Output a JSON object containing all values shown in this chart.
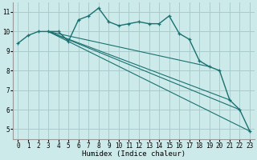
{
  "xlabel": "Humidex (Indice chaleur)",
  "bg_color": "#cceaea",
  "grid_color": "#aacccc",
  "line_color": "#1a7070",
  "xlim": [
    -0.5,
    23.5
  ],
  "ylim": [
    4.5,
    11.5
  ],
  "xticks": [
    0,
    1,
    2,
    3,
    4,
    5,
    6,
    7,
    8,
    9,
    10,
    11,
    12,
    13,
    14,
    15,
    16,
    17,
    18,
    19,
    20,
    21,
    22,
    23
  ],
  "yticks": [
    5,
    6,
    7,
    8,
    9,
    10,
    11
  ],
  "main_series": [
    9.4,
    9.8,
    10.0,
    10.0,
    10.0,
    9.5,
    10.6,
    10.8,
    11.2,
    10.5,
    10.3,
    10.4,
    10.5,
    10.4,
    10.4,
    10.8,
    9.9,
    9.6,
    8.5,
    8.2,
    8.0,
    6.5,
    6.0,
    4.9
  ],
  "straight_lines": [
    [
      [
        3,
        23
      ],
      [
        10.0,
        4.9
      ]
    ],
    [
      [
        3,
        22
      ],
      [
        10.0,
        6.0
      ]
    ],
    [
      [
        3,
        21
      ],
      [
        10.0,
        6.5
      ]
    ],
    [
      [
        3,
        19
      ],
      [
        10.0,
        8.2
      ]
    ]
  ]
}
